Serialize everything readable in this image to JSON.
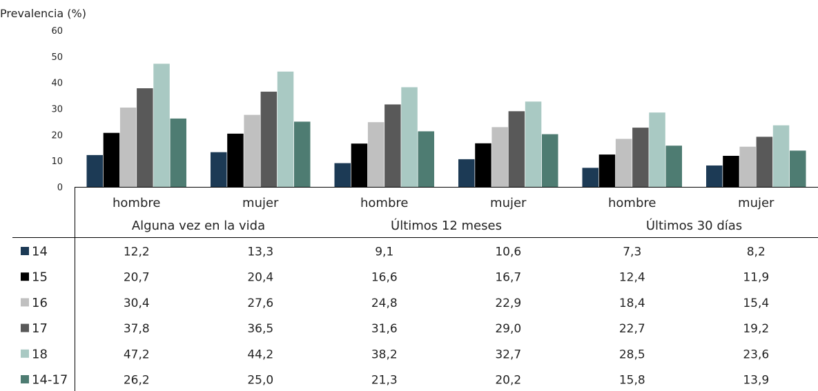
{
  "chart_data": {
    "type": "bar",
    "ylabel": "Prevalencia (%)",
    "ylim": [
      0,
      60
    ],
    "yticks": [
      0,
      10,
      20,
      30,
      40,
      50,
      60
    ],
    "grid": false,
    "legend_placement": "bottom-left data table",
    "groups": [
      "Alguna vez en la vida",
      "Últimos 12 meses",
      "Últimos 30 días"
    ],
    "categories": [
      "hombre",
      "mujer",
      "hombre",
      "mujer",
      "hombre",
      "mujer"
    ],
    "series": [
      {
        "name": "14",
        "color": "#1c3a55",
        "values": [
          12.2,
          13.3,
          9.1,
          10.6,
          7.3,
          8.2
        ],
        "labels": [
          "12,2",
          "13,3",
          "9,1",
          "10,6",
          "7,3",
          "8,2"
        ]
      },
      {
        "name": "15",
        "color": "#000000",
        "values": [
          20.7,
          20.4,
          16.6,
          16.7,
          12.4,
          11.9
        ],
        "labels": [
          "20,7",
          "20,4",
          "16,6",
          "16,7",
          "12,4",
          "11,9"
        ]
      },
      {
        "name": "16",
        "color": "#c0c0c0",
        "values": [
          30.4,
          27.6,
          24.8,
          22.9,
          18.4,
          15.4
        ],
        "labels": [
          "30,4",
          "27,6",
          "24,8",
          "22,9",
          "18,4",
          "15,4"
        ]
      },
      {
        "name": "17",
        "color": "#595959",
        "values": [
          37.8,
          36.5,
          31.6,
          29.0,
          22.7,
          19.2
        ],
        "labels": [
          "37,8",
          "36,5",
          "31,6",
          "29,0",
          "22,7",
          "19,2"
        ]
      },
      {
        "name": "18",
        "color": "#a9c9c3",
        "values": [
          47.2,
          44.2,
          38.2,
          32.7,
          28.5,
          23.6
        ],
        "labels": [
          "47,2",
          "44,2",
          "38,2",
          "32,7",
          "28,5",
          "23,6"
        ]
      },
      {
        "name": "14-17",
        "color": "#4e7c72",
        "values": [
          26.2,
          25.0,
          21.3,
          20.2,
          15.8,
          13.9
        ],
        "labels": [
          "26,2",
          "25,0",
          "21,3",
          "20,2",
          "15,8",
          "13,9"
        ]
      }
    ]
  }
}
